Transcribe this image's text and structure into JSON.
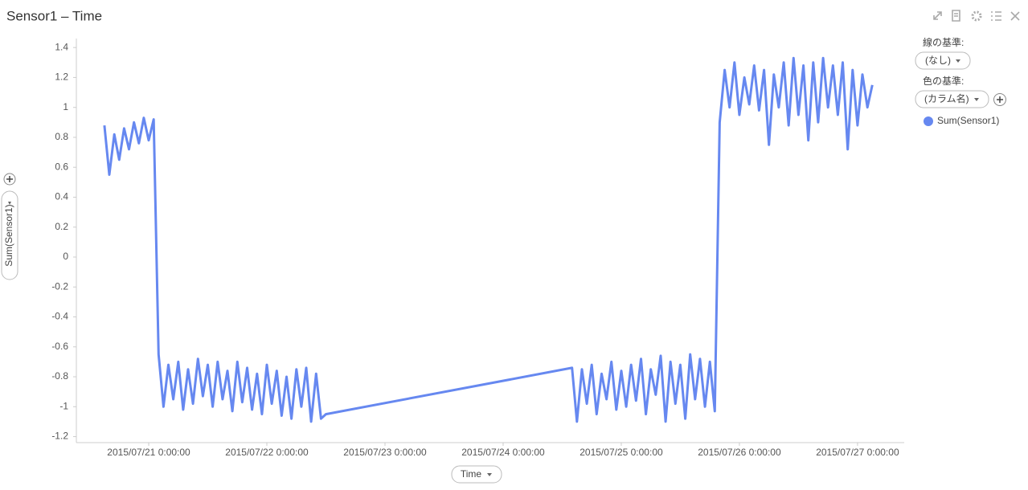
{
  "chart_data": {
    "type": "line",
    "title": "Sensor1 – Time",
    "x_label": "Time",
    "y_label": "Sum(Sensor1)",
    "x": [
      "2015-07-20T15:00:00",
      "2015-07-20T16:00:00",
      "2015-07-20T17:00:00",
      "2015-07-20T18:00:00",
      "2015-07-20T19:00:00",
      "2015-07-20T20:00:00",
      "2015-07-20T21:00:00",
      "2015-07-20T22:00:00",
      "2015-07-20T23:00:00",
      "2015-07-21T00:00:00",
      "2015-07-21T01:00:00",
      "2015-07-21T02:00:00",
      "2015-07-21T03:00:00",
      "2015-07-21T04:00:00",
      "2015-07-21T05:00:00",
      "2015-07-21T06:00:00",
      "2015-07-21T07:00:00",
      "2015-07-21T08:00:00",
      "2015-07-21T09:00:00",
      "2015-07-21T10:00:00",
      "2015-07-21T11:00:00",
      "2015-07-21T12:00:00",
      "2015-07-21T13:00:00",
      "2015-07-21T14:00:00",
      "2015-07-21T15:00:00",
      "2015-07-21T16:00:00",
      "2015-07-21T17:00:00",
      "2015-07-21T18:00:00",
      "2015-07-21T19:00:00",
      "2015-07-21T20:00:00",
      "2015-07-21T21:00:00",
      "2015-07-21T22:00:00",
      "2015-07-21T23:00:00",
      "2015-07-22T00:00:00",
      "2015-07-22T01:00:00",
      "2015-07-22T02:00:00",
      "2015-07-22T03:00:00",
      "2015-07-22T04:00:00",
      "2015-07-22T05:00:00",
      "2015-07-22T06:00:00",
      "2015-07-22T07:00:00",
      "2015-07-22T08:00:00",
      "2015-07-22T09:00:00",
      "2015-07-22T10:00:00",
      "2015-07-22T11:00:00",
      "2015-07-22T12:00:00",
      "2015-07-24T14:00:00",
      "2015-07-24T15:00:00",
      "2015-07-24T16:00:00",
      "2015-07-24T17:00:00",
      "2015-07-24T18:00:00",
      "2015-07-24T19:00:00",
      "2015-07-24T20:00:00",
      "2015-07-24T21:00:00",
      "2015-07-24T22:00:00",
      "2015-07-24T23:00:00",
      "2015-07-25T00:00:00",
      "2015-07-25T01:00:00",
      "2015-07-25T02:00:00",
      "2015-07-25T03:00:00",
      "2015-07-25T04:00:00",
      "2015-07-25T05:00:00",
      "2015-07-25T06:00:00",
      "2015-07-25T07:00:00",
      "2015-07-25T08:00:00",
      "2015-07-25T09:00:00",
      "2015-07-25T10:00:00",
      "2015-07-25T11:00:00",
      "2015-07-25T12:00:00",
      "2015-07-25T13:00:00",
      "2015-07-25T14:00:00",
      "2015-07-25T15:00:00",
      "2015-07-25T16:00:00",
      "2015-07-25T17:00:00",
      "2015-07-25T18:00:00",
      "2015-07-25T19:00:00",
      "2015-07-25T20:00:00",
      "2015-07-25T21:00:00",
      "2015-07-25T22:00:00",
      "2015-07-25T23:00:00",
      "2015-07-26T00:00:00",
      "2015-07-26T01:00:00",
      "2015-07-26T02:00:00",
      "2015-07-26T03:00:00",
      "2015-07-26T04:00:00",
      "2015-07-26T05:00:00",
      "2015-07-26T06:00:00",
      "2015-07-26T07:00:00",
      "2015-07-26T08:00:00",
      "2015-07-26T09:00:00",
      "2015-07-26T10:00:00",
      "2015-07-26T11:00:00",
      "2015-07-26T12:00:00",
      "2015-07-26T13:00:00",
      "2015-07-26T14:00:00",
      "2015-07-26T15:00:00",
      "2015-07-26T16:00:00",
      "2015-07-26T17:00:00",
      "2015-07-26T18:00:00",
      "2015-07-26T19:00:00",
      "2015-07-26T20:00:00",
      "2015-07-26T21:00:00",
      "2015-07-26T22:00:00",
      "2015-07-26T23:00:00",
      "2015-07-27T00:00:00",
      "2015-07-27T01:00:00",
      "2015-07-27T02:00:00",
      "2015-07-27T03:00:00"
    ],
    "series": [
      {
        "name": "Sum(Sensor1)",
        "color": "#6688f0",
        "values": [
          0.88,
          0.55,
          0.82,
          0.65,
          0.86,
          0.72,
          0.9,
          0.76,
          0.93,
          0.78,
          0.92,
          -0.65,
          -1.0,
          -0.72,
          -0.95,
          -0.7,
          -1.02,
          -0.75,
          -0.98,
          -0.68,
          -0.93,
          -0.72,
          -1.0,
          -0.7,
          -0.95,
          -0.76,
          -1.03,
          -0.7,
          -0.97,
          -0.74,
          -1.02,
          -0.78,
          -1.05,
          -0.72,
          -0.98,
          -0.76,
          -1.06,
          -0.8,
          -1.08,
          -0.75,
          -1.0,
          -0.74,
          -1.1,
          -0.78,
          -1.08,
          -1.05,
          -0.74,
          -1.1,
          -0.75,
          -0.98,
          -0.72,
          -1.05,
          -0.78,
          -0.95,
          -0.7,
          -1.02,
          -0.76,
          -1.0,
          -0.72,
          -0.96,
          -0.68,
          -1.05,
          -0.75,
          -0.92,
          -0.66,
          -1.1,
          -0.7,
          -0.98,
          -0.72,
          -1.08,
          -0.65,
          -0.95,
          -0.68,
          -1.0,
          -0.7,
          -1.03,
          0.9,
          1.25,
          1.0,
          1.3,
          0.95,
          1.2,
          1.02,
          1.28,
          0.98,
          1.25,
          0.75,
          1.22,
          1.0,
          1.3,
          0.88,
          1.33,
          0.95,
          1.28,
          0.78,
          1.3,
          0.9,
          1.33,
          1.0,
          1.28,
          0.95,
          1.3,
          0.72,
          1.25,
          0.88,
          1.22,
          1.0,
          1.15
        ]
      }
    ],
    "xlim": [
      "2015-07-20T09:18:00",
      "2015-07-27T09:29:00"
    ],
    "xticks": [
      {
        "value": "2015-07-21T00:00:00",
        "label": "2015/07/21 0:00:00"
      },
      {
        "value": "2015-07-22T00:00:00",
        "label": "2015/07/22 0:00:00"
      },
      {
        "value": "2015-07-23T00:00:00",
        "label": "2015/07/23 0:00:00"
      },
      {
        "value": "2015-07-24T00:00:00",
        "label": "2015/07/24 0:00:00"
      },
      {
        "value": "2015-07-25T00:00:00",
        "label": "2015/07/25 0:00:00"
      },
      {
        "value": "2015-07-26T00:00:00",
        "label": "2015/07/26 0:00:00"
      },
      {
        "value": "2015-07-27T00:00:00",
        "label": "2015/07/27 0:00:00"
      }
    ],
    "ylim": [
      -1.24,
      1.46
    ],
    "yticks": [
      1.4,
      1.2,
      1,
      0.8,
      0.6,
      0.4,
      0.2,
      0,
      -0.2,
      -0.4,
      -0.6,
      -0.8,
      -1,
      -1.2
    ],
    "grid": false
  },
  "panel": {
    "line_by": "線の基準:",
    "line_by_value": "(なし)",
    "color_by": "色の基準:",
    "color_by_value": "(カラム名)"
  }
}
